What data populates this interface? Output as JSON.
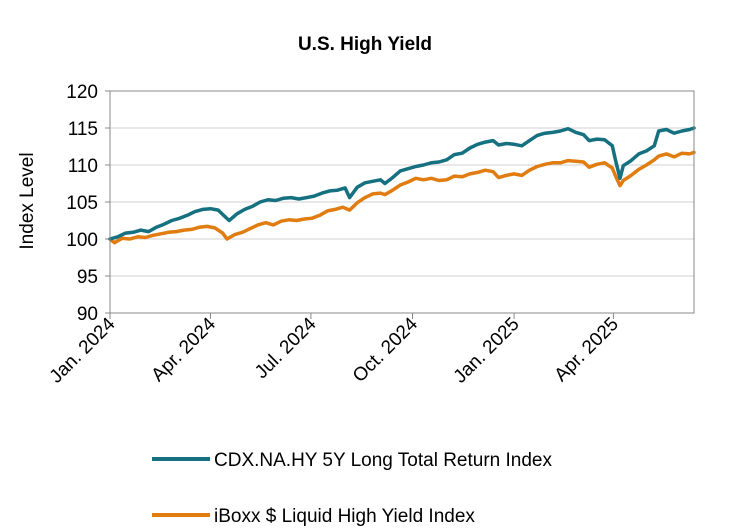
{
  "chart_data": {
    "type": "line",
    "title": "U.S. High Yield",
    "ylabel": "Index Level",
    "xlabel": "",
    "ylim": [
      90,
      120
    ],
    "yticks": [
      90,
      95,
      100,
      105,
      110,
      115,
      120
    ],
    "x_axis_type": "date",
    "x_range": [
      "2024-01-01",
      "2025-06-13"
    ],
    "x_ticks": [
      {
        "date": "2024-01-01",
        "label": "Jan. 2024"
      },
      {
        "date": "2024-04-01",
        "label": "Apr. 2024"
      },
      {
        "date": "2024-07-01",
        "label": "Jul. 2024"
      },
      {
        "date": "2024-10-01",
        "label": "Oct. 2024"
      },
      {
        "date": "2025-01-01",
        "label": "Jan. 2025"
      },
      {
        "date": "2025-04-01",
        "label": "Apr. 2025"
      }
    ],
    "grid": "horizontal",
    "legend_position": "bottom",
    "series": [
      {
        "name": "CDX.NA.HY 5Y Long Total Return Index",
        "color": "#15707f",
        "points": [
          [
            "2024-01-01",
            100.0
          ],
          [
            "2024-01-08",
            100.3
          ],
          [
            "2024-01-15",
            100.8
          ],
          [
            "2024-01-22",
            100.9
          ],
          [
            "2024-01-29",
            101.2
          ],
          [
            "2024-02-05",
            101.0
          ],
          [
            "2024-02-12",
            101.6
          ],
          [
            "2024-02-19",
            102.0
          ],
          [
            "2024-02-26",
            102.5
          ],
          [
            "2024-03-04",
            102.8
          ],
          [
            "2024-03-11",
            103.2
          ],
          [
            "2024-03-18",
            103.7
          ],
          [
            "2024-03-25",
            104.0
          ],
          [
            "2024-04-01",
            104.1
          ],
          [
            "2024-04-08",
            103.9
          ],
          [
            "2024-04-15",
            102.9
          ],
          [
            "2024-04-18",
            102.5
          ],
          [
            "2024-04-25",
            103.4
          ],
          [
            "2024-05-02",
            104.0
          ],
          [
            "2024-05-09",
            104.4
          ],
          [
            "2024-05-16",
            105.0
          ],
          [
            "2024-05-23",
            105.3
          ],
          [
            "2024-05-30",
            105.2
          ],
          [
            "2024-06-06",
            105.5
          ],
          [
            "2024-06-13",
            105.6
          ],
          [
            "2024-06-20",
            105.4
          ],
          [
            "2024-06-27",
            105.6
          ],
          [
            "2024-07-04",
            105.8
          ],
          [
            "2024-07-11",
            106.2
          ],
          [
            "2024-07-18",
            106.5
          ],
          [
            "2024-07-25",
            106.6
          ],
          [
            "2024-08-01",
            106.9
          ],
          [
            "2024-08-05",
            105.6
          ],
          [
            "2024-08-12",
            107.0
          ],
          [
            "2024-08-19",
            107.6
          ],
          [
            "2024-08-26",
            107.8
          ],
          [
            "2024-09-02",
            108.0
          ],
          [
            "2024-09-06",
            107.5
          ],
          [
            "2024-09-13",
            108.3
          ],
          [
            "2024-09-20",
            109.2
          ],
          [
            "2024-09-27",
            109.5
          ],
          [
            "2024-10-04",
            109.8
          ],
          [
            "2024-10-11",
            110.0
          ],
          [
            "2024-10-18",
            110.3
          ],
          [
            "2024-10-25",
            110.4
          ],
          [
            "2024-11-01",
            110.7
          ],
          [
            "2024-11-08",
            111.4
          ],
          [
            "2024-11-15",
            111.6
          ],
          [
            "2024-11-22",
            112.3
          ],
          [
            "2024-11-29",
            112.8
          ],
          [
            "2024-12-06",
            113.1
          ],
          [
            "2024-12-13",
            113.3
          ],
          [
            "2024-12-18",
            112.7
          ],
          [
            "2024-12-25",
            112.9
          ],
          [
            "2025-01-01",
            112.8
          ],
          [
            "2025-01-08",
            112.6
          ],
          [
            "2025-01-15",
            113.3
          ],
          [
            "2025-01-22",
            114.0
          ],
          [
            "2025-01-29",
            114.3
          ],
          [
            "2025-02-05",
            114.4
          ],
          [
            "2025-02-12",
            114.6
          ],
          [
            "2025-02-19",
            114.9
          ],
          [
            "2025-02-26",
            114.4
          ],
          [
            "2025-03-05",
            114.1
          ],
          [
            "2025-03-10",
            113.3
          ],
          [
            "2025-03-17",
            113.5
          ],
          [
            "2025-03-24",
            113.4
          ],
          [
            "2025-03-31",
            112.6
          ],
          [
            "2025-04-03",
            110.6
          ],
          [
            "2025-04-07",
            108.2
          ],
          [
            "2025-04-10",
            109.9
          ],
          [
            "2025-04-17",
            110.6
          ],
          [
            "2025-04-24",
            111.5
          ],
          [
            "2025-05-01",
            111.9
          ],
          [
            "2025-05-08",
            112.6
          ],
          [
            "2025-05-12",
            114.6
          ],
          [
            "2025-05-19",
            114.8
          ],
          [
            "2025-05-26",
            114.3
          ],
          [
            "2025-06-02",
            114.6
          ],
          [
            "2025-06-09",
            114.8
          ],
          [
            "2025-06-13",
            115.0
          ]
        ]
      },
      {
        "name": "iBoxx $ Liquid High Yield Index",
        "color": "#e07c10",
        "points": [
          [
            "2024-01-01",
            100.0
          ],
          [
            "2024-01-05",
            99.5
          ],
          [
            "2024-01-12",
            100.1
          ],
          [
            "2024-01-19",
            100.0
          ],
          [
            "2024-01-26",
            100.3
          ],
          [
            "2024-02-02",
            100.2
          ],
          [
            "2024-02-09",
            100.5
          ],
          [
            "2024-02-16",
            100.7
          ],
          [
            "2024-02-23",
            100.9
          ],
          [
            "2024-03-01",
            101.0
          ],
          [
            "2024-03-08",
            101.2
          ],
          [
            "2024-03-15",
            101.3
          ],
          [
            "2024-03-22",
            101.6
          ],
          [
            "2024-03-29",
            101.7
          ],
          [
            "2024-04-05",
            101.5
          ],
          [
            "2024-04-12",
            100.8
          ],
          [
            "2024-04-16",
            100.0
          ],
          [
            "2024-04-23",
            100.6
          ],
          [
            "2024-04-30",
            100.9
          ],
          [
            "2024-05-07",
            101.4
          ],
          [
            "2024-05-14",
            101.9
          ],
          [
            "2024-05-21",
            102.2
          ],
          [
            "2024-05-28",
            101.9
          ],
          [
            "2024-06-04",
            102.4
          ],
          [
            "2024-06-11",
            102.6
          ],
          [
            "2024-06-18",
            102.5
          ],
          [
            "2024-06-25",
            102.7
          ],
          [
            "2024-07-02",
            102.8
          ],
          [
            "2024-07-09",
            103.2
          ],
          [
            "2024-07-16",
            103.8
          ],
          [
            "2024-07-23",
            104.0
          ],
          [
            "2024-07-30",
            104.3
          ],
          [
            "2024-08-05",
            103.9
          ],
          [
            "2024-08-12",
            104.9
          ],
          [
            "2024-08-19",
            105.6
          ],
          [
            "2024-08-26",
            106.1
          ],
          [
            "2024-09-02",
            106.2
          ],
          [
            "2024-09-06",
            106.0
          ],
          [
            "2024-09-13",
            106.6
          ],
          [
            "2024-09-20",
            107.3
          ],
          [
            "2024-09-27",
            107.7
          ],
          [
            "2024-10-04",
            108.2
          ],
          [
            "2024-10-11",
            108.0
          ],
          [
            "2024-10-18",
            108.2
          ],
          [
            "2024-10-25",
            107.9
          ],
          [
            "2024-11-01",
            108.0
          ],
          [
            "2024-11-08",
            108.5
          ],
          [
            "2024-11-15",
            108.4
          ],
          [
            "2024-11-22",
            108.8
          ],
          [
            "2024-11-29",
            109.0
          ],
          [
            "2024-12-06",
            109.3
          ],
          [
            "2024-12-13",
            109.1
          ],
          [
            "2024-12-18",
            108.3
          ],
          [
            "2024-12-25",
            108.6
          ],
          [
            "2025-01-01",
            108.8
          ],
          [
            "2025-01-08",
            108.6
          ],
          [
            "2025-01-15",
            109.3
          ],
          [
            "2025-01-22",
            109.8
          ],
          [
            "2025-01-29",
            110.1
          ],
          [
            "2025-02-05",
            110.3
          ],
          [
            "2025-02-12",
            110.3
          ],
          [
            "2025-02-19",
            110.6
          ],
          [
            "2025-02-26",
            110.5
          ],
          [
            "2025-03-05",
            110.4
          ],
          [
            "2025-03-10",
            109.7
          ],
          [
            "2025-03-17",
            110.1
          ],
          [
            "2025-03-24",
            110.3
          ],
          [
            "2025-03-31",
            109.6
          ],
          [
            "2025-04-03",
            108.5
          ],
          [
            "2025-04-07",
            107.2
          ],
          [
            "2025-04-10",
            107.9
          ],
          [
            "2025-04-17",
            108.6
          ],
          [
            "2025-04-24",
            109.4
          ],
          [
            "2025-05-01",
            110.0
          ],
          [
            "2025-05-08",
            110.7
          ],
          [
            "2025-05-12",
            111.2
          ],
          [
            "2025-05-19",
            111.5
          ],
          [
            "2025-05-26",
            111.1
          ],
          [
            "2025-06-02",
            111.6
          ],
          [
            "2025-06-09",
            111.5
          ],
          [
            "2025-06-13",
            111.7
          ]
        ]
      }
    ]
  }
}
